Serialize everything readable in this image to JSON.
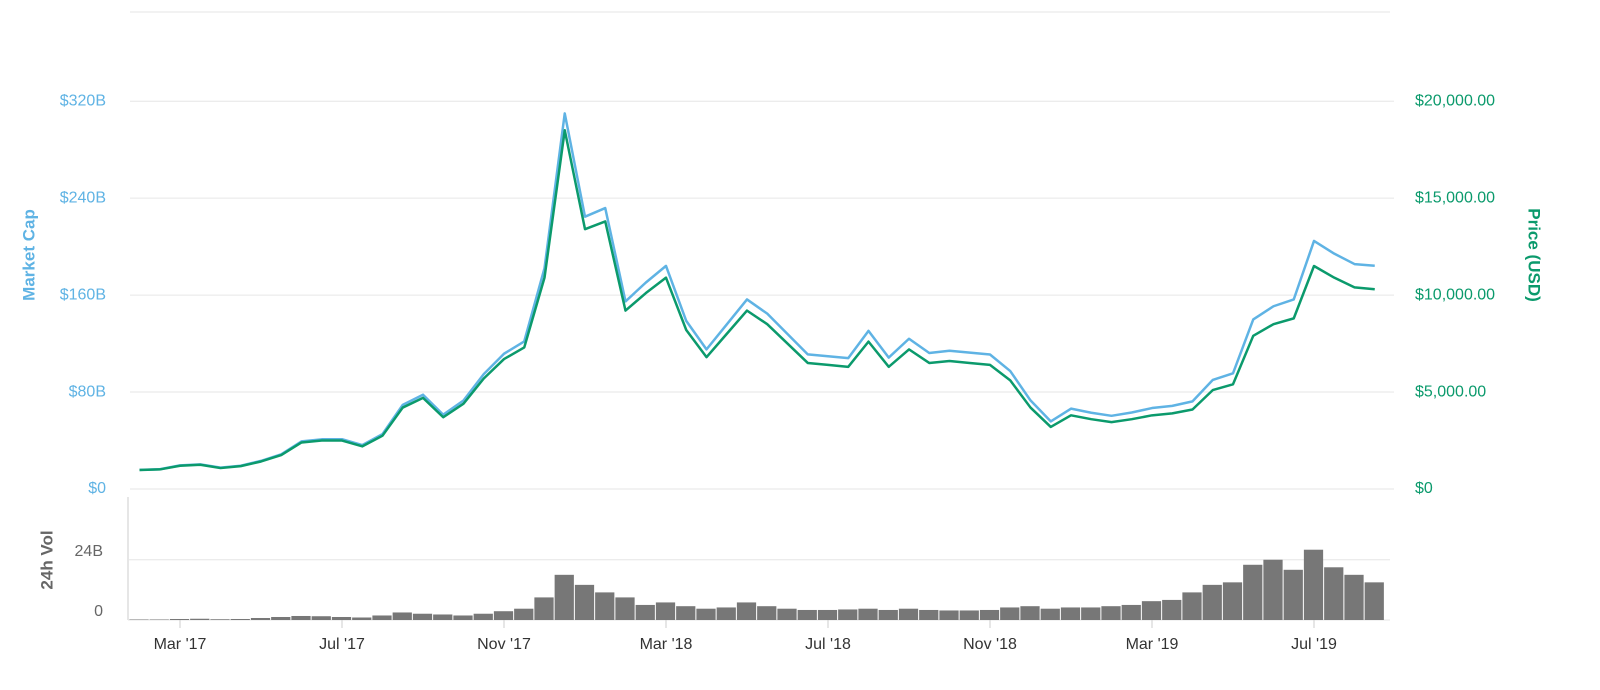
{
  "chart_data": [
    {
      "type": "line",
      "ylabel": "Market Cap",
      "y2label": "Price (USD)",
      "ylim": [
        0,
        393.6
      ],
      "yticks": [
        {
          "value": 0,
          "label": "$0"
        },
        {
          "value": 80,
          "label": "$80B"
        },
        {
          "value": 160,
          "label": "$160B"
        },
        {
          "value": 240,
          "label": "$240B"
        },
        {
          "value": 320,
          "label": "$320B"
        }
      ],
      "y2lim": [
        0,
        24600
      ],
      "y2ticks": [
        {
          "value": 0,
          "label": "$0"
        },
        {
          "value": 5000,
          "label": "$5,000.00"
        },
        {
          "value": 10000,
          "label": "$10,000.00"
        },
        {
          "value": 15000,
          "label": "$15,000.00"
        },
        {
          "value": 20000,
          "label": "$20,000.00"
        }
      ],
      "grid": true,
      "series": [
        {
          "name": "Market Cap",
          "color": "#5fb3e4",
          "axis": "y",
          "values": [
            15.8,
            16.3,
            19.5,
            20.3,
            17.6,
            19.2,
            23.2,
            28.6,
            39.3,
            41.0,
            41.1,
            36.2,
            45.3,
            69.4,
            77.8,
            61.3,
            73.0,
            94.8,
            111.6,
            121.8,
            182.2,
            309.9,
            224.7,
            231.8,
            154.8,
            170.3,
            184.1,
            138.7,
            115.2,
            135.8,
            156.4,
            144.7,
            127.9,
            111.1,
            109.5,
            108.0,
            130.5,
            108.4,
            124.0,
            112.2,
            114.1,
            112.5,
            111.0,
            97.3,
            73.1,
            55.8,
            66.3,
            62.9,
            60.4,
            63.1,
            66.8,
            68.6,
            72.3,
            90.0,
            95.5,
            139.9,
            150.8,
            156.4,
            204.7,
            194.2,
            185.6,
            184.2
          ]
        },
        {
          "name": "Price (USD)",
          "color": "#0b9a6c",
          "axis": "y2",
          "values": [
            980,
            1010,
            1200,
            1250,
            1080,
            1180,
            1420,
            1750,
            2400,
            2500,
            2500,
            2200,
            2750,
            4200,
            4700,
            3700,
            4400,
            5700,
            6700,
            7300,
            10900,
            18500,
            13400,
            13800,
            9200,
            10100,
            10900,
            8200,
            6800,
            8000,
            9200,
            8500,
            7500,
            6500,
            6400,
            6300,
            7600,
            6300,
            7200,
            6500,
            6600,
            6500,
            6400,
            5600,
            4200,
            3200,
            3800,
            3600,
            3450,
            3600,
            3800,
            3900,
            4100,
            5100,
            5400,
            7900,
            8500,
            8800,
            11500,
            10900,
            10400,
            10300
          ]
        }
      ]
    },
    {
      "type": "bar",
      "ylabel": "24h Vol",
      "ylim": [
        0,
        49
      ],
      "yticks": [
        0,
        {
          "value": 24,
          "label": "24B"
        }
      ],
      "grid": true,
      "color": "#777777",
      "categories": [
        null,
        null,
        "Mar '17",
        null,
        null,
        null,
        null,
        null,
        null,
        null,
        "Jul '17",
        null,
        null,
        null,
        null,
        null,
        null,
        null,
        "Nov '17",
        null,
        null,
        null,
        null,
        null,
        null,
        null,
        "Mar '18",
        null,
        null,
        null,
        null,
        null,
        null,
        null,
        "Jul '18",
        null,
        null,
        null,
        null,
        null,
        null,
        null,
        "Nov '18",
        null,
        null,
        null,
        null,
        null,
        null,
        null,
        "Mar '19",
        null,
        null,
        null,
        null,
        null,
        null,
        null,
        "Jul '19",
        null,
        null,
        null
      ],
      "values": [
        0.2,
        0.2,
        0.4,
        0.5,
        0.3,
        0.4,
        0.8,
        1.2,
        1.6,
        1.5,
        1.2,
        1.0,
        1.8,
        3.0,
        2.5,
        2.2,
        1.8,
        2.5,
        3.5,
        4.5,
        9,
        18,
        14,
        11,
        9,
        6,
        7,
        5.5,
        4.5,
        5,
        7,
        5.5,
        4.5,
        4,
        4,
        4.2,
        4.5,
        4,
        4.5,
        4,
        3.8,
        3.8,
        4,
        5,
        5.5,
        4.5,
        5,
        5,
        5.5,
        6,
        7.5,
        8,
        11,
        14,
        15,
        22,
        24,
        20,
        28,
        21,
        18,
        15
      ]
    }
  ]
}
